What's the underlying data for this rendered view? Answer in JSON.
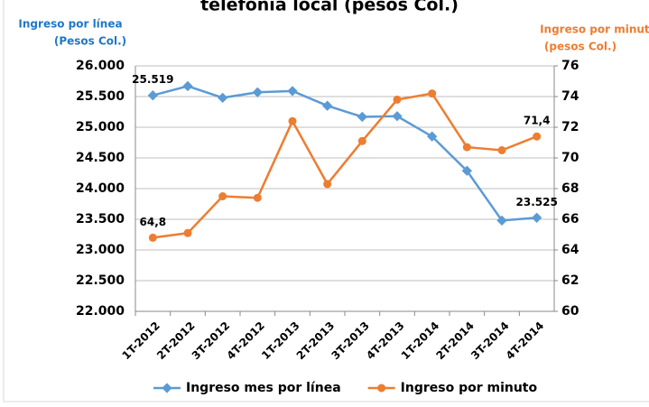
{
  "chart_data": {
    "type": "line",
    "title": "telefonía local (pesos Col.)",
    "y_label": [
      "Ingreso por línea",
      "(Pesos Col.)"
    ],
    "y2_label": [
      "Ingreso por minuto",
      "(pesos Col.)"
    ],
    "categories": [
      "1T-2012",
      "2T-2012",
      "3T-2012",
      "4T-2012",
      "1T-2013",
      "2T-2013",
      "3T-2013",
      "4T-2013",
      "1T-2014",
      "2T-2014",
      "3T-2014",
      "4T-2014"
    ],
    "series": [
      {
        "name": "Ingreso mes por línea",
        "color": "#5b9bd5",
        "axis": "y",
        "values": [
          25519,
          25670,
          25480,
          25570,
          25590,
          25350,
          25170,
          25180,
          24850,
          24290,
          23480,
          23525
        ],
        "value_labels": [
          "25.519",
          null,
          null,
          null,
          null,
          null,
          null,
          null,
          null,
          null,
          null,
          "23.525"
        ]
      },
      {
        "name": "Ingreso por minuto",
        "color": "#ed7d31",
        "axis": "y2",
        "values": [
          64.8,
          65.1,
          67.5,
          67.4,
          72.4,
          68.3,
          71.1,
          73.8,
          74.2,
          70.7,
          70.5,
          71.4
        ],
        "value_labels": [
          "64,8",
          null,
          null,
          null,
          null,
          null,
          null,
          null,
          null,
          null,
          null,
          "71,4"
        ]
      }
    ],
    "ylim": [
      22000,
      26000
    ],
    "yticks": [
      {
        "value": 22000,
        "label": "22.000"
      },
      {
        "value": 22500,
        "label": "22.500"
      },
      {
        "value": 23000,
        "label": "23.000"
      },
      {
        "value": 23500,
        "label": "23.500"
      },
      {
        "value": 24000,
        "label": "24.000"
      },
      {
        "value": 24500,
        "label": "24.500"
      },
      {
        "value": 25000,
        "label": "25.000"
      },
      {
        "value": 25500,
        "label": "25.500"
      },
      {
        "value": 26000,
        "label": "26.000"
      }
    ],
    "y2lim": [
      60,
      76
    ],
    "y2ticks": [
      60,
      62,
      64,
      66,
      68,
      70,
      72,
      74,
      76
    ],
    "grid": true,
    "legend": "bottom"
  }
}
